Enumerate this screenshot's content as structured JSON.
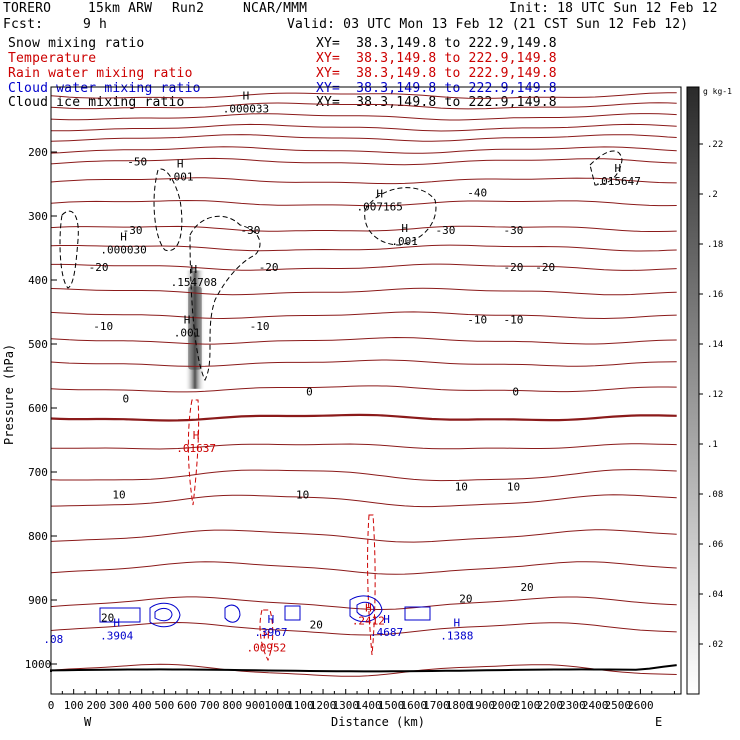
{
  "header": {
    "model": "TORERO",
    "resolution": "15km ARW",
    "run": "Run2",
    "center": "NCAR/MMM",
    "init": "Init: 18 UTC Sun 12 Feb 12",
    "fcst_label": "Fcst:",
    "fcst_value": "9 h",
    "valid": "Valid: 03 UTC Mon 13 Feb 12 (21 CST Sun 12 Feb 12)"
  },
  "fields": [
    {
      "name": "Snow mixing ratio",
      "xy": "XY=  38.3,149.8 to 222.9,149.8",
      "color": "#000000"
    },
    {
      "name": "Temperature",
      "xy": "XY=  38.3,149.8 to 222.9,149.8",
      "color": "#cc0000"
    },
    {
      "name": "Rain water mixing ratio",
      "xy": "XY=  38.3,149.8 to 222.9,149.8",
      "color": "#cc0000"
    },
    {
      "name": "Cloud water mixing ratio",
      "xy": "XY=  38.3,149.8 to 222.9,149.8",
      "color": "#0000cc"
    },
    {
      "name": "Cloud ice mixing ratio",
      "xy": "XY=  38.3,149.8 to 222.9,149.8",
      "color": "#000000"
    }
  ],
  "chart_data": {
    "type": "cross-section",
    "xlabel": "Distance (km)",
    "ylabel": "Pressure (hPa)",
    "xlim": [
      0,
      2780
    ],
    "ylim": [
      1050,
      100
    ],
    "x_ticks": [
      0,
      100,
      200,
      300,
      400,
      500,
      600,
      700,
      800,
      900,
      1000,
      1100,
      1200,
      1300,
      1400,
      1500,
      1600,
      1700,
      1800,
      1900,
      2000,
      2100,
      2200,
      2300,
      2400,
      2500,
      2600
    ],
    "y_ticks": [
      200,
      300,
      400,
      500,
      600,
      700,
      800,
      900,
      1000
    ],
    "left_end": "W",
    "right_end": "E",
    "colorbar": {
      "unit": "g kg-1",
      "ticks": [
        ".02",
        ".04",
        ".06",
        ".08",
        ".1",
        ".12",
        ".14",
        ".16",
        ".18",
        ".2",
        ".22"
      ]
    },
    "temperature_labels": [
      {
        "text": "-50",
        "x": 380,
        "p": 215
      },
      {
        "text": "-40",
        "x": 1880,
        "p": 263
      },
      {
        "text": "-30",
        "x": 360,
        "p": 322
      },
      {
        "text": "-30",
        "x": 880,
        "p": 322
      },
      {
        "text": "-30",
        "x": 1740,
        "p": 322
      },
      {
        "text": "-30",
        "x": 2040,
        "p": 322
      },
      {
        "text": "-20",
        "x": 210,
        "p": 380
      },
      {
        "text": "-20",
        "x": 960,
        "p": 380
      },
      {
        "text": "-20",
        "x": 2040,
        "p": 380
      },
      {
        "text": "-20",
        "x": 2180,
        "p": 380
      },
      {
        "text": "-10",
        "x": 230,
        "p": 472
      },
      {
        "text": "-10",
        "x": 920,
        "p": 472
      },
      {
        "text": "-10",
        "x": 1880,
        "p": 462
      },
      {
        "text": "-10",
        "x": 2040,
        "p": 462
      },
      {
        "text": "0",
        "x": 330,
        "p": 585
      },
      {
        "text": "0",
        "x": 1140,
        "p": 574
      },
      {
        "text": "0",
        "x": 2050,
        "p": 574
      },
      {
        "text": "10",
        "x": 300,
        "p": 735
      },
      {
        "text": "10",
        "x": 1110,
        "p": 735
      },
      {
        "text": "10",
        "x": 1810,
        "p": 723
      },
      {
        "text": "10",
        "x": 2040,
        "p": 723
      },
      {
        "text": "20",
        "x": 250,
        "p": 927
      },
      {
        "text": "20",
        "x": 1170,
        "p": 938
      },
      {
        "text": "20",
        "x": 1830,
        "p": 898
      },
      {
        "text": "20",
        "x": 2100,
        "p": 880
      }
    ],
    "extrema_labels": [
      {
        "mark": "H",
        "value": ".000033",
        "x": 860,
        "p": 137,
        "color": "#000000"
      },
      {
        "mark": "H",
        "value": ".001",
        "x": 570,
        "p": 243,
        "color": "#000000"
      },
      {
        "mark": "H",
        "value": ".007165",
        "x": 1450,
        "p": 290,
        "color": "#000000"
      },
      {
        "mark": "H",
        "value": ".000030",
        "x": 320,
        "p": 357,
        "color": "#000000"
      },
      {
        "mark": "H",
        "value": ".001",
        "x": 1560,
        "p": 344,
        "color": "#000000"
      },
      {
        "mark": "H",
        "value": ".015647",
        "x": 2500,
        "p": 250,
        "color": "#000000"
      },
      {
        "mark": "H",
        "value": ".154708",
        "x": 630,
        "p": 408,
        "color": "#000000"
      },
      {
        "mark": "H",
        "value": ".001",
        "x": 600,
        "p": 487,
        "color": "#000000"
      },
      {
        "mark": "H",
        "value": ".01637",
        "x": 640,
        "p": 667,
        "color": "#cc0000"
      },
      {
        "mark": "H",
        "value": ".00952",
        "x": 950,
        "p": 979,
        "color": "#cc0000"
      },
      {
        "mark": "H",
        "value": ".2412",
        "x": 1400,
        "p": 937,
        "color": "#cc0000"
      },
      {
        "mark": "H",
        "value": ".3904",
        "x": 290,
        "p": 960,
        "color": "#0000cc"
      },
      {
        "mark": "H",
        "value": ".3967",
        "x": 970,
        "p": 955,
        "color": "#0000cc"
      },
      {
        "mark": "H",
        "value": ".4687",
        "x": 1480,
        "p": 955,
        "color": "#0000cc"
      },
      {
        "mark": "H",
        "value": ".1388",
        "x": 1790,
        "p": 960,
        "color": "#0000cc"
      },
      {
        "mark": "",
        "value": ".08",
        "x": 10,
        "p": 966,
        "color": "#0000cc"
      }
    ]
  }
}
